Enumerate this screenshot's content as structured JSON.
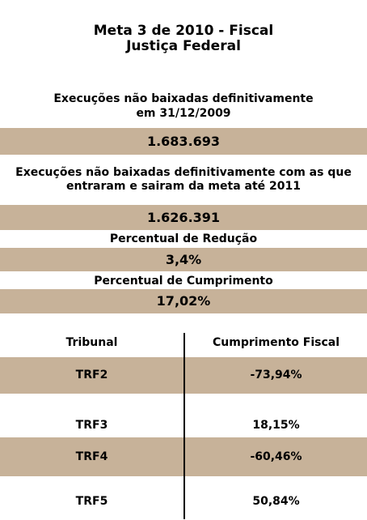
{
  "title": {
    "line1": "Meta 3 de 2010 - Fiscal",
    "line2": "Justiça Federal"
  },
  "executions": {
    "label_line1": "Execuções não baixadas definitivamente",
    "label_line2": "em 31/12/2009",
    "value": "1.683.693"
  },
  "executions_meta": {
    "label_line1": "Execuções não baixadas definitivamente com as que",
    "label_line2": "entraram e sairam da meta até 2011",
    "value": "1.626.391"
  },
  "reduction": {
    "label": "Percentual de Redução",
    "value": "3,4%"
  },
  "fulfillment": {
    "label": "Percentual de Cumprimento",
    "value": "17,02%"
  },
  "table": {
    "headers": [
      "Tribunal",
      "Cumprimento Fiscal"
    ],
    "rows": [
      {
        "tribunal": "TRF2",
        "value": "-73,94%"
      },
      {
        "tribunal": "TRF3",
        "value": "18,15%"
      },
      {
        "tribunal": "TRF4",
        "value": "-60,46%"
      },
      {
        "tribunal": "TRF5",
        "value": "50,84%"
      }
    ]
  },
  "colors": {
    "band": "#c7b299",
    "text": "#000000",
    "background": "#ffffff"
  }
}
